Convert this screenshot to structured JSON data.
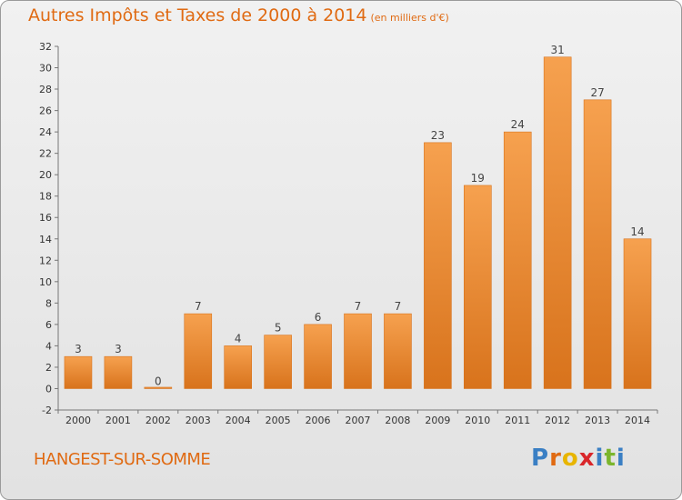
{
  "header": {
    "title": "Autres Impôts et Taxes de 2000 à 2014",
    "subtitle": "(en milliers d'€)"
  },
  "footer": {
    "place": "HANGEST-SUR-SOMME",
    "brand_letters": [
      "P",
      "r",
      "o",
      "x",
      "i",
      "t",
      "i"
    ]
  },
  "colors": {
    "accent": "#e06a12",
    "bar_light": "#f6a14f",
    "bar_dark": "#d8731c",
    "brand": [
      "#3a7fc4",
      "#e06a12",
      "#e8b500",
      "#d9262a",
      "#3a7fc4",
      "#7bb52d",
      "#3a7fc4"
    ]
  },
  "chart_data": {
    "type": "bar",
    "title": "Autres Impôts et Taxes de 2000 à 2014",
    "subtitle": "(en milliers d'€)",
    "categories": [
      "2000",
      "2001",
      "2002",
      "2003",
      "2004",
      "2005",
      "2006",
      "2007",
      "2008",
      "2009",
      "2010",
      "2011",
      "2012",
      "2013",
      "2014"
    ],
    "values": [
      3,
      3,
      0,
      7,
      4,
      5,
      6,
      7,
      7,
      23,
      19,
      24,
      31,
      27,
      14
    ],
    "ylim": [
      -2,
      32
    ],
    "yticks": [
      -2,
      0,
      2,
      4,
      6,
      8,
      10,
      12,
      14,
      16,
      18,
      20,
      22,
      24,
      26,
      28,
      30,
      32
    ],
    "grid": false,
    "xlabel": "",
    "ylabel": ""
  }
}
